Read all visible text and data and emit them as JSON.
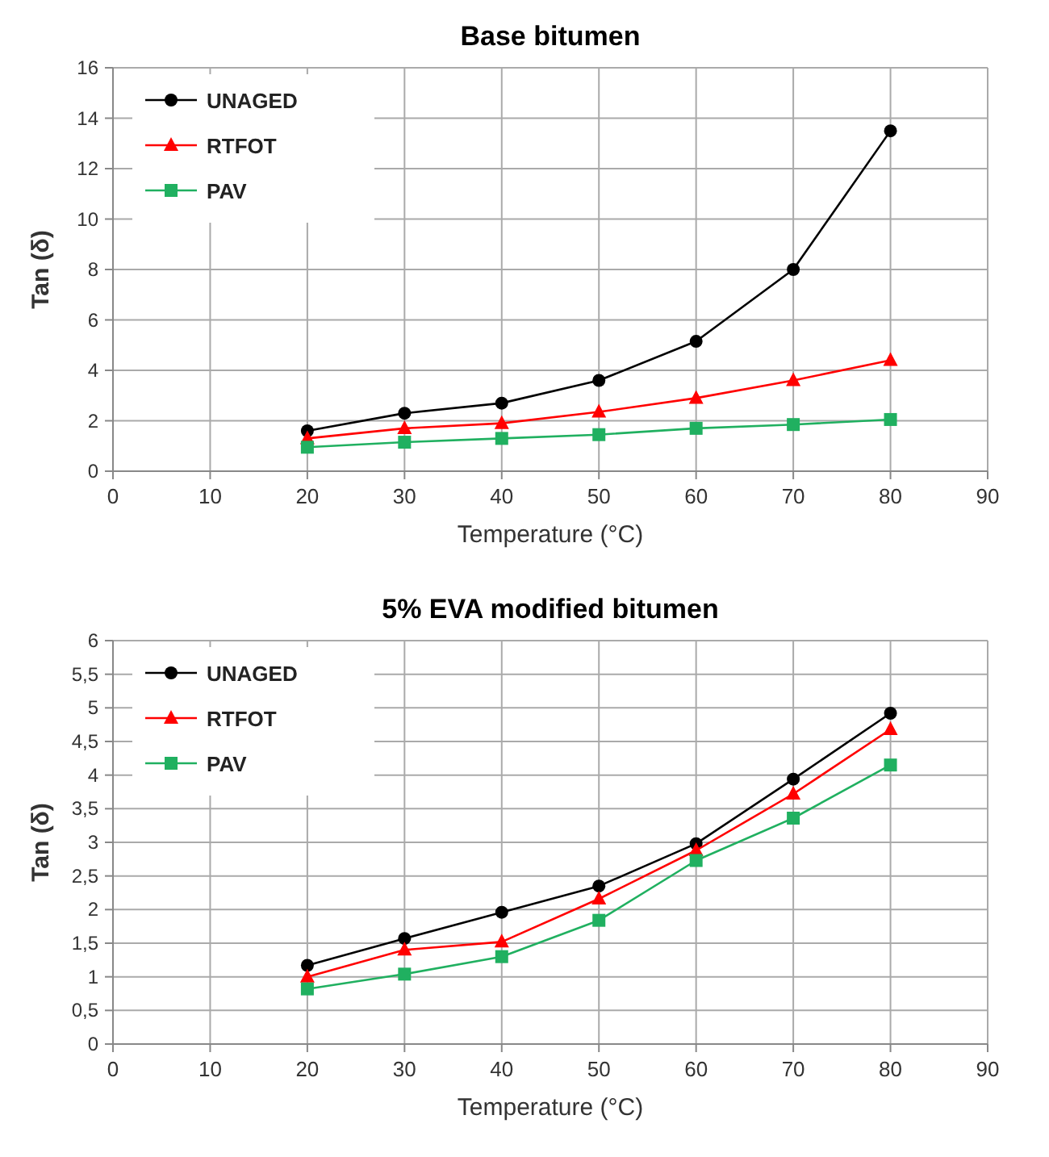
{
  "chart_data": [
    {
      "type": "line",
      "title": "Base bitumen",
      "xlabel": "Temperature  (°C)",
      "ylabel": "Tan (δ)",
      "x": [
        20,
        30,
        40,
        50,
        60,
        70,
        80
      ],
      "xlim": [
        0,
        90
      ],
      "xticks": [
        0,
        10,
        20,
        30,
        40,
        50,
        60,
        70,
        80,
        90
      ],
      "ylim": [
        0,
        16
      ],
      "yticks": [
        0,
        2,
        4,
        6,
        8,
        10,
        12,
        14,
        16
      ],
      "grid": true,
      "legend": "top left",
      "series": [
        {
          "name": "UNAGED",
          "color": "#000000",
          "marker": "circle",
          "values": [
            1.6,
            2.3,
            2.7,
            3.6,
            5.15,
            8.0,
            13.5
          ]
        },
        {
          "name": "RTFOT",
          "color": "#ff0000",
          "marker": "triangle",
          "values": [
            1.3,
            1.7,
            1.9,
            2.35,
            2.9,
            3.6,
            4.4
          ]
        },
        {
          "name": "PAV",
          "color": "#20b060",
          "marker": "square",
          "values": [
            0.95,
            1.15,
            1.3,
            1.45,
            1.7,
            1.85,
            2.05
          ]
        }
      ]
    },
    {
      "type": "line",
      "title": "5% EVA modified bitumen",
      "xlabel": "Temperature (°C)",
      "ylabel": "Tan (δ)",
      "x": [
        20,
        30,
        40,
        50,
        60,
        70,
        80
      ],
      "xlim": [
        0,
        90
      ],
      "xticks": [
        0,
        10,
        20,
        30,
        40,
        50,
        60,
        70,
        80,
        90
      ],
      "ylim": [
        0,
        6
      ],
      "yticks": [
        0,
        {
          "value": 0.5,
          "label": "0,5"
        },
        1,
        {
          "value": 1.5,
          "label": "1,5"
        },
        2,
        {
          "value": 2.5,
          "label": "2,5"
        },
        3,
        {
          "value": 3.5,
          "label": "3,5"
        },
        4,
        {
          "value": 4.5,
          "label": "4,5"
        },
        5,
        {
          "value": 5.5,
          "label": "5,5"
        },
        6
      ],
      "grid": true,
      "legend": "top left",
      "series": [
        {
          "name": "UNAGED",
          "color": "#000000",
          "marker": "circle",
          "values": [
            1.17,
            1.57,
            1.96,
            2.35,
            2.98,
            3.94,
            4.92
          ]
        },
        {
          "name": "RTFOT",
          "color": "#ff0000",
          "marker": "triangle",
          "values": [
            1.0,
            1.4,
            1.52,
            2.16,
            2.88,
            3.72,
            4.68
          ]
        },
        {
          "name": "PAV",
          "color": "#20b060",
          "marker": "square",
          "values": [
            0.82,
            1.04,
            1.3,
            1.84,
            2.73,
            3.36,
            4.15
          ]
        }
      ]
    }
  ]
}
